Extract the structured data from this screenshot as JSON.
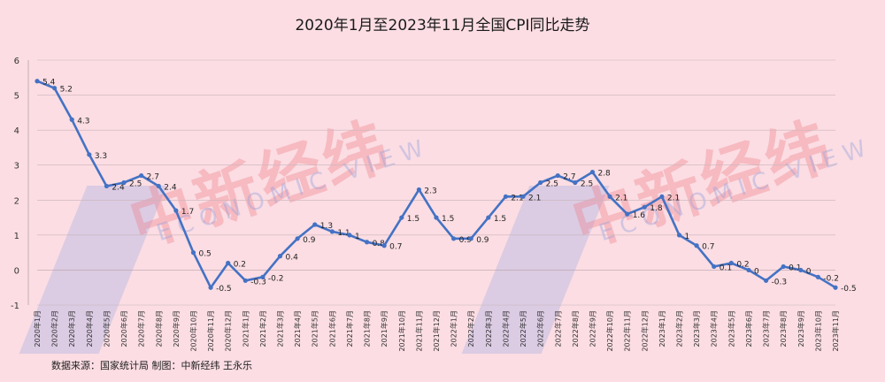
{
  "title": "2020年1月至2023年11月全国CPI同比走势",
  "source": "数据来源：国家统计局 制图：中新经纬 王永乐",
  "watermark": {
    "cn": "中新经纬",
    "en": "ECONOMIC VIEW"
  },
  "colors": {
    "line": "#4472c4",
    "grid": "#c9b5bb",
    "background": "#fbdde3"
  },
  "chart_data": {
    "type": "line",
    "title": "2020年1月至2023年11月全国CPI同比走势",
    "xlabel": "",
    "ylabel": "",
    "ylim": [
      -1,
      6
    ],
    "yticks": [
      -1,
      0,
      1,
      2,
      3,
      4,
      5,
      6
    ],
    "grid": true,
    "categories": [
      "2020年1月",
      "2020年2月",
      "2020年3月",
      "2020年4月",
      "2020年5月",
      "2020年6月",
      "2020年7月",
      "2020年8月",
      "2020年9月",
      "2020年10月",
      "2020年11月",
      "2020年12月",
      "2021年1月",
      "2021年2月",
      "2021年3月",
      "2021年4月",
      "2021年5月",
      "2021年6月",
      "2021年7月",
      "2021年8月",
      "2021年9月",
      "2021年10月",
      "2021年11月",
      "2021年12月",
      "2022年1月",
      "2022年2月",
      "2022年3月",
      "2022年4月",
      "2022年5月",
      "2022年6月",
      "2022年7月",
      "2022年8月",
      "2022年9月",
      "2022年10月",
      "2022年11月",
      "2022年12月",
      "2023年1月",
      "2023年2月",
      "2023年3月",
      "2023年4月",
      "2023年5月",
      "2023年6月",
      "2023年7月",
      "2023年8月",
      "2023年9月",
      "2023年10月",
      "2023年11月"
    ],
    "values": [
      5.4,
      5.2,
      4.3,
      3.3,
      2.4,
      2.5,
      2.7,
      2.4,
      1.7,
      0.5,
      -0.5,
      0.2,
      -0.3,
      -0.2,
      0.4,
      0.9,
      1.3,
      1.1,
      1,
      0.8,
      0.7,
      1.5,
      2.3,
      1.5,
      0.9,
      0.9,
      1.5,
      2.1,
      2.1,
      2.5,
      2.7,
      2.5,
      2.8,
      2.1,
      1.6,
      1.8,
      2.1,
      1,
      0.7,
      0.1,
      0.2,
      0,
      -0.3,
      0.1,
      0,
      -0.2,
      -0.5
    ],
    "labels": [
      "5.4",
      "5.2",
      "4.3",
      "3.3",
      "2.4",
      "2.5",
      "2.7",
      "2.4",
      "1.7",
      "0.5",
      "-0.5",
      "0.2",
      "-0.3",
      "-0.2",
      "0.4",
      "0.9",
      "1.3",
      "1.1",
      "1",
      "0.8",
      "0.7",
      "1.5",
      "2.3",
      "1.5",
      "0.9",
      "0.9",
      "1.5",
      "2.1",
      "2.1",
      "2.5",
      "2.7",
      "2.5",
      "2.8",
      "2.1",
      "1.6",
      "1.8",
      "2.1",
      "1",
      "0.7",
      "0.1",
      "0.2",
      "0",
      "-0.3",
      "0.1",
      "0",
      "-0.2",
      "-0.5"
    ]
  }
}
